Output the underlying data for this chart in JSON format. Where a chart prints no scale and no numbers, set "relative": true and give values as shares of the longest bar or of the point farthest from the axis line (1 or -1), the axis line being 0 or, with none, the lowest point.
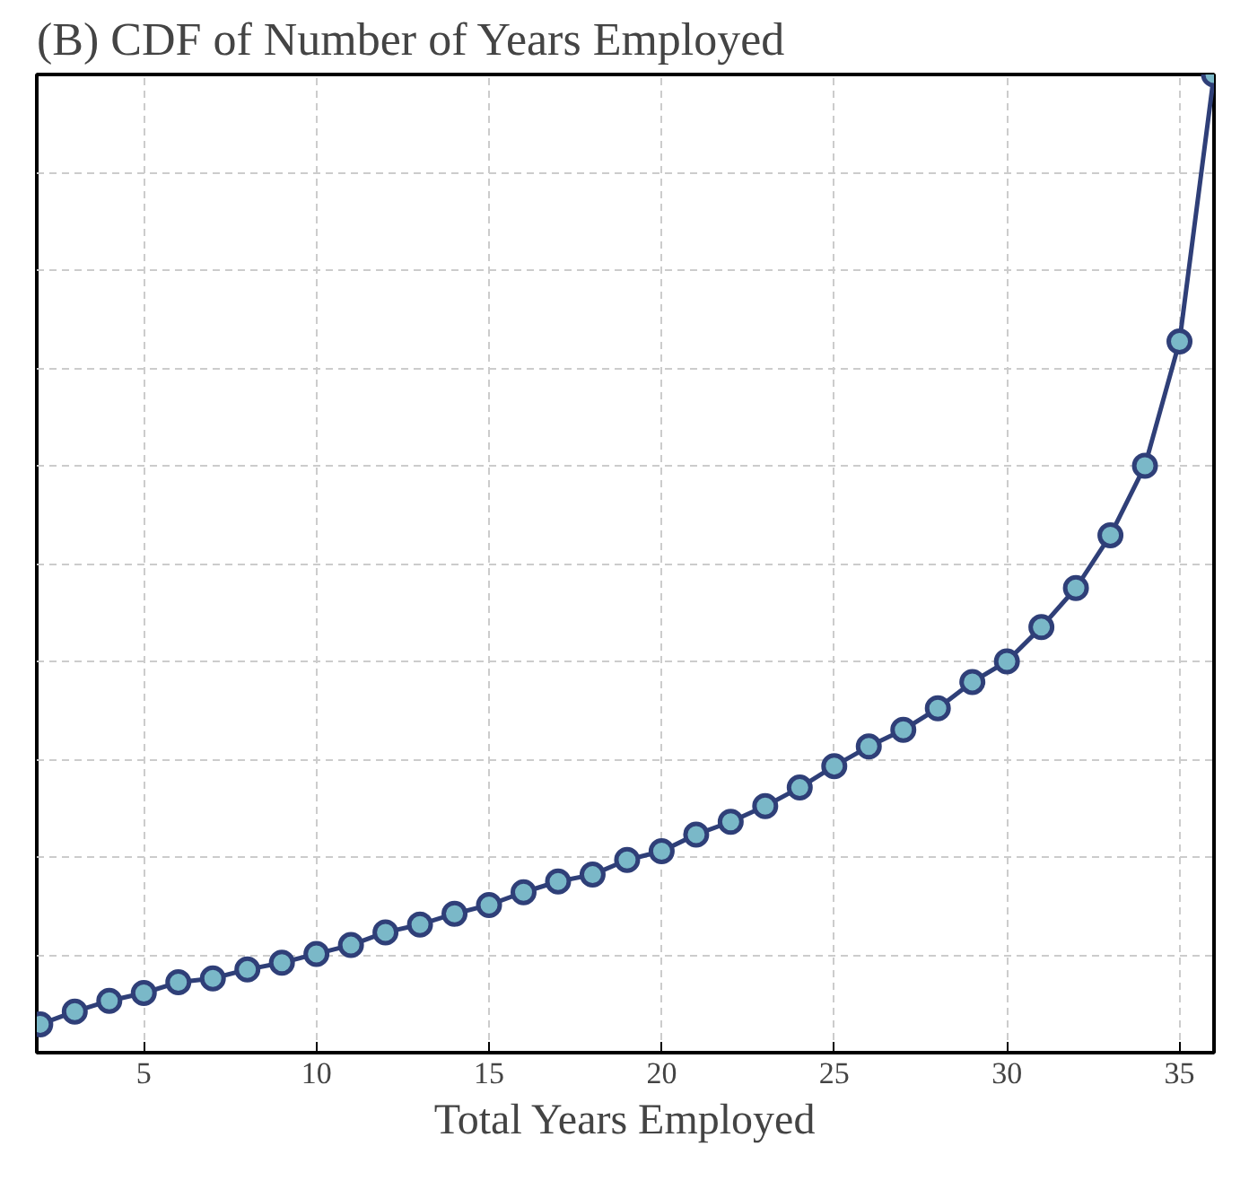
{
  "chart_data": {
    "type": "line",
    "title": "(B) CDF of Number of Years Employed",
    "xlabel": "Total Years Employed",
    "x": [
      2,
      3,
      4,
      5,
      6,
      7,
      8,
      9,
      10,
      11,
      12,
      13,
      14,
      15,
      16,
      17,
      18,
      19,
      20,
      21,
      22,
      23,
      24,
      25,
      26,
      27,
      28,
      29,
      30,
      31,
      32,
      33,
      34,
      35,
      36
    ],
    "series": [
      {
        "color": "#2f3f78",
        "values": [
          0.029,
          0.042,
          0.053,
          0.061,
          0.072,
          0.076,
          0.085,
          0.092,
          0.101,
          0.11,
          0.123,
          0.131,
          0.142,
          0.151,
          0.164,
          0.175,
          0.182,
          0.197,
          0.206,
          0.223,
          0.236,
          0.252,
          0.271,
          0.293,
          0.313,
          0.33,
          0.352,
          0.379,
          0.4,
          0.435,
          0.475,
          0.529,
          0.6,
          0.727,
          1.0
        ]
      }
    ],
    "relative": true,
    "xlim": [
      1.9,
      36
    ],
    "xticks": [
      5,
      10,
      15,
      20,
      25,
      30,
      35
    ],
    "grid": true,
    "marker": "circle",
    "line_style": "solid",
    "tick_labels": "x"
  }
}
